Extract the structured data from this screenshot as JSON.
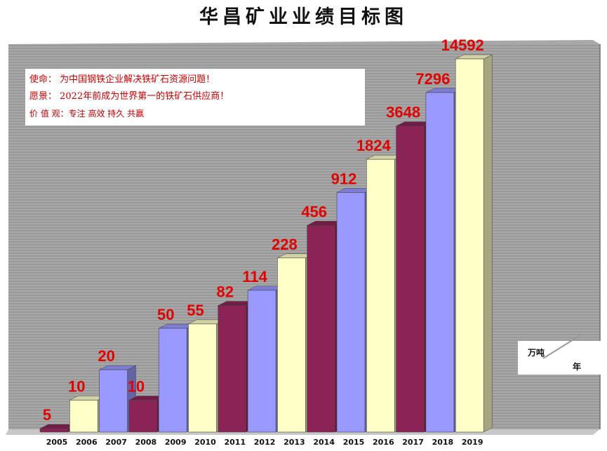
{
  "title": "华昌矿业业绩目标图",
  "mission": {
    "line1": "使命：  为中国钢铁企业解决铁矿石资源问题！",
    "line2": "愿景：  2022年前成为世界第一的铁矿石供应商！",
    "line3": "价 值 观：专注  高效  持久  共赢"
  },
  "unit": {
    "top": "万吨",
    "bottom": "年"
  },
  "colors": {
    "maroon": "#8b2356",
    "cream": "#ffffc8",
    "periwinkle": "#9999ff",
    "label": "#e00000",
    "wall": "#a8a8a8",
    "wall_line": "#8a8a8a"
  },
  "chart_data": {
    "type": "bar",
    "title": "华昌矿业业绩目标图",
    "unit": "万吨/年",
    "scale": "nonlinear",
    "categories": [
      "2005",
      "2006",
      "2007",
      "2008",
      "2009",
      "2010",
      "2011",
      "2012",
      "2013",
      "2014",
      "2015",
      "2016",
      "2017",
      "2018",
      "2019"
    ],
    "values": [
      5,
      10,
      20,
      10,
      50,
      55,
      82,
      114,
      228,
      456,
      912,
      1824,
      3648,
      7296,
      14592
    ],
    "data_labels": [
      "5",
      "10",
      "20",
      "10",
      "50",
      "55",
      "82",
      "114",
      "228",
      "456",
      "912",
      "1824",
      "3648",
      "7296",
      "14592"
    ],
    "bar_colors": [
      "maroon",
      "cream",
      "periwinkle",
      "maroon",
      "periwinkle",
      "cream",
      "maroon",
      "periwinkle",
      "cream",
      "maroon",
      "periwinkle",
      "cream",
      "maroon",
      "periwinkle",
      "cream"
    ],
    "grid": true,
    "legend": "none"
  }
}
